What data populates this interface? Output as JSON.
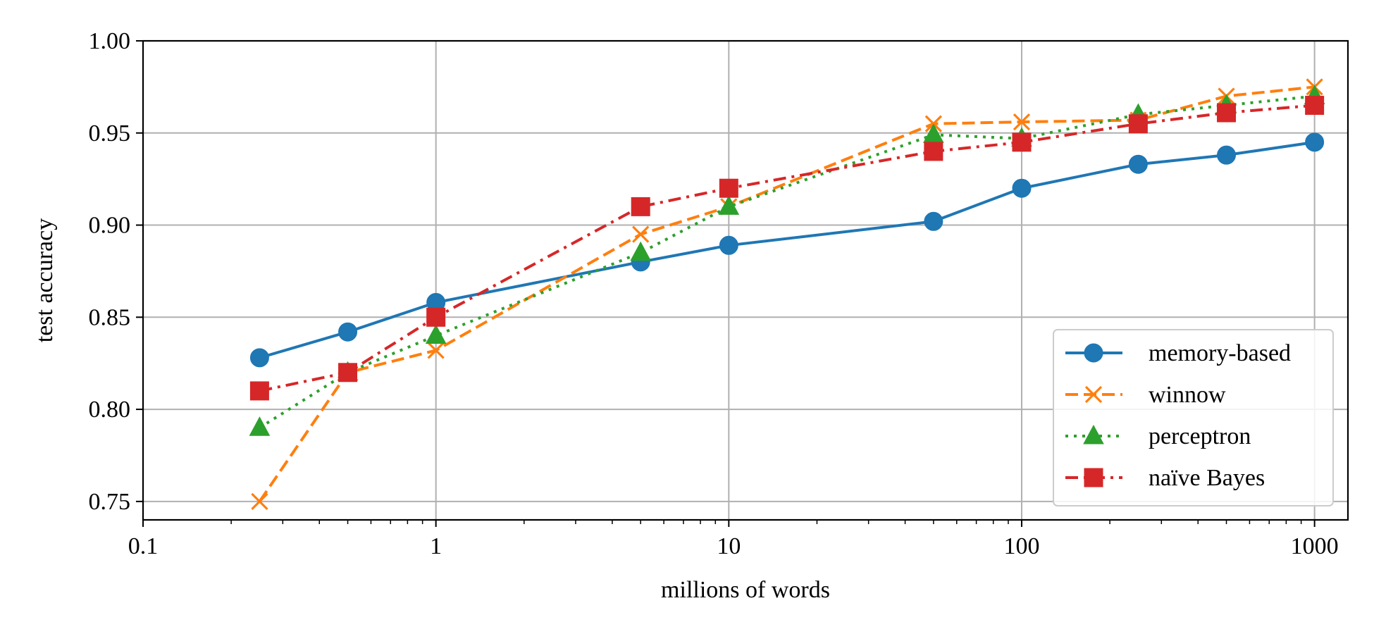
{
  "chart_data": {
    "type": "line",
    "title": "",
    "xlabel": "millions of words",
    "ylabel": "test accuracy",
    "xscale": "log",
    "xlim": [
      0.1,
      1300
    ],
    "ylim": [
      0.74,
      1.0
    ],
    "xticks": [
      {
        "value": 0.1,
        "label": "0.1"
      },
      {
        "value": 1,
        "label": "1"
      },
      {
        "value": 10,
        "label": "10"
      },
      {
        "value": 100,
        "label": "100"
      },
      {
        "value": 1000,
        "label": "1000"
      }
    ],
    "yticks": [
      {
        "value": 0.75,
        "label": "0.75"
      },
      {
        "value": 0.8,
        "label": "0.80"
      },
      {
        "value": 0.85,
        "label": "0.85"
      },
      {
        "value": 0.9,
        "label": "0.90"
      },
      {
        "value": 0.95,
        "label": "0.95"
      },
      {
        "value": 1.0,
        "label": "1.00"
      }
    ],
    "grid": true,
    "legend_position": "lower-right",
    "series": [
      {
        "name": "memory-based",
        "color": "#1f77b4",
        "dash": "solid",
        "marker": "circle",
        "x": [
          0.25,
          0.5,
          1,
          5,
          10,
          50,
          100,
          250,
          500,
          1000
        ],
        "y": [
          0.828,
          0.842,
          0.858,
          0.88,
          0.889,
          0.902,
          0.92,
          0.933,
          0.938,
          0.945
        ]
      },
      {
        "name": "winnow",
        "color": "#ff7f0e",
        "dash": "dashed",
        "marker": "x",
        "x": [
          0.25,
          0.5,
          1,
          5,
          10,
          50,
          100,
          250,
          500,
          1000
        ],
        "y": [
          0.75,
          0.82,
          0.832,
          0.895,
          0.91,
          0.955,
          0.956,
          0.957,
          0.97,
          0.975
        ]
      },
      {
        "name": "perceptron",
        "color": "#2ca02c",
        "dash": "dotted",
        "marker": "triangle",
        "x": [
          0.25,
          0.5,
          1,
          5,
          10,
          50,
          100,
          250,
          500,
          1000
        ],
        "y": [
          0.79,
          0.82,
          0.84,
          0.885,
          0.91,
          0.949,
          0.947,
          0.96,
          0.965,
          0.97
        ]
      },
      {
        "name": "naïve Bayes",
        "color": "#d62728",
        "dash": "dashdot",
        "marker": "square",
        "x": [
          0.25,
          0.5,
          1,
          5,
          10,
          50,
          100,
          250,
          500,
          1000
        ],
        "y": [
          0.81,
          0.82,
          0.85,
          0.91,
          0.92,
          0.94,
          0.945,
          0.955,
          0.961,
          0.965
        ]
      }
    ]
  }
}
